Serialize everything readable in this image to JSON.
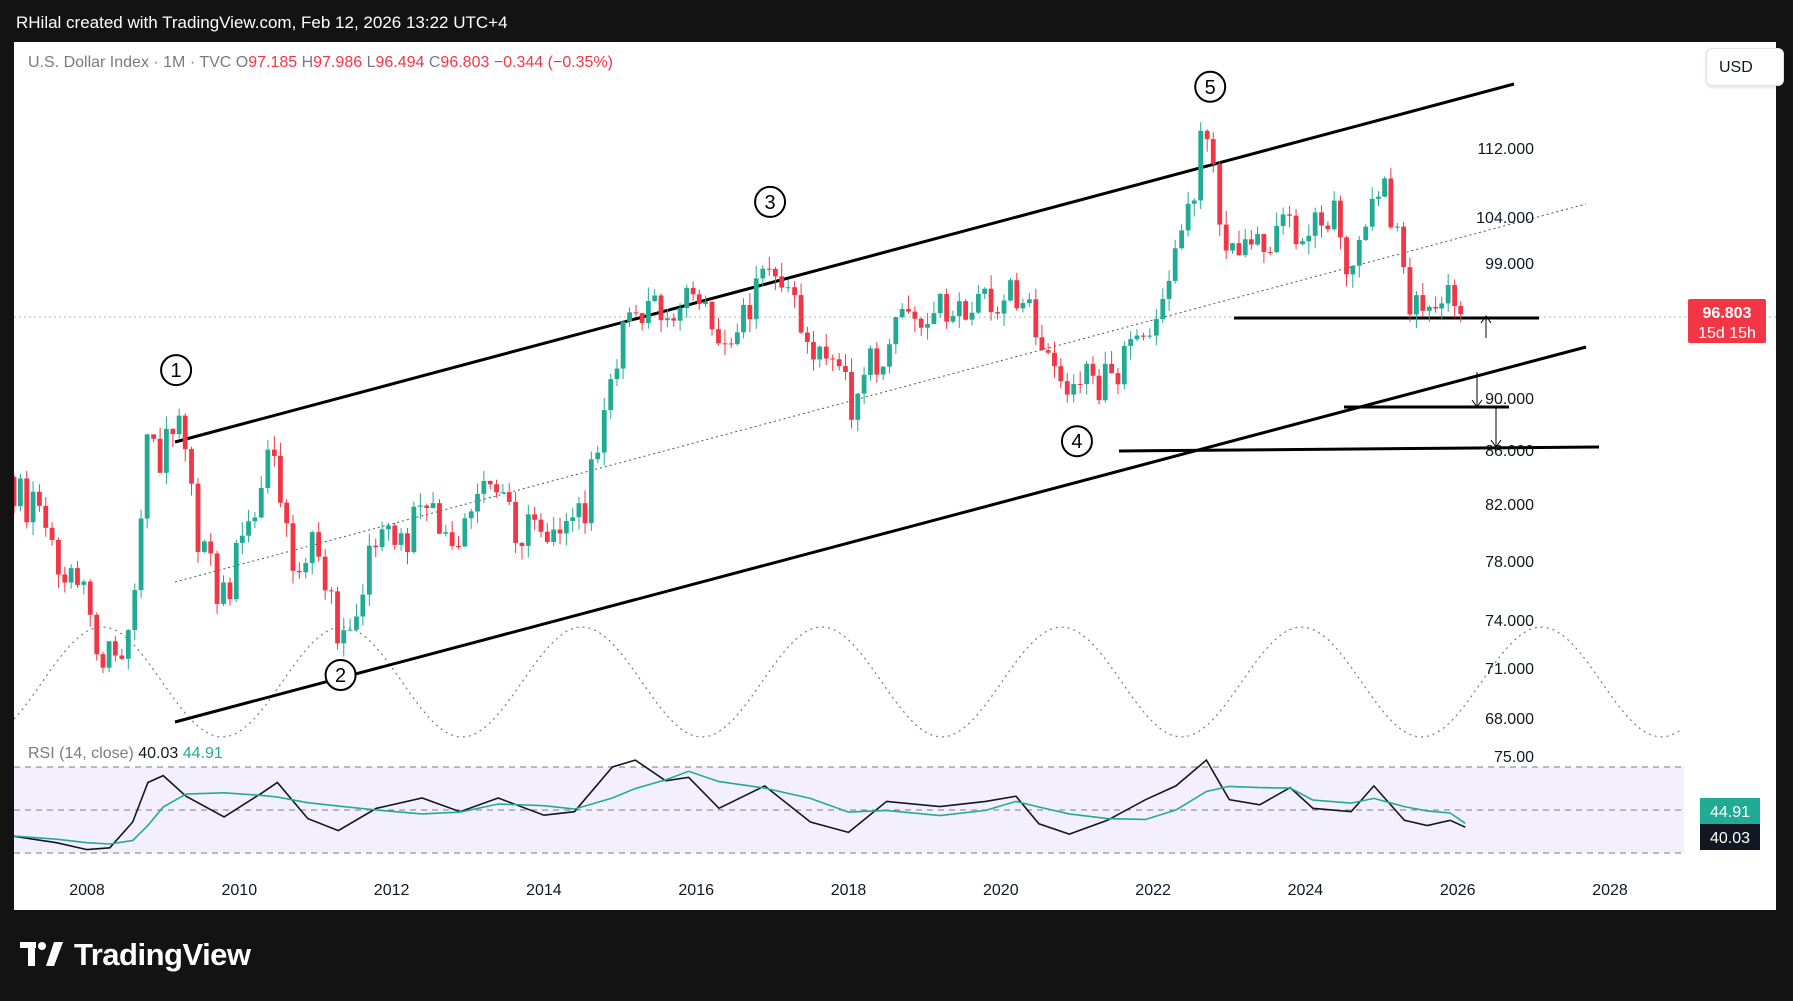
{
  "header": {
    "text": "RHilal created with TradingView.com, Feb 12, 2026 13:22 UTC+4"
  },
  "legend": {
    "symbol": "U.S. Dollar Index · 1M · TVC",
    "open_label": "O",
    "open": "97.185",
    "high_label": "H",
    "high": "97.986",
    "low_label": "L",
    "low": "96.494",
    "close_label": "C",
    "close": "96.803",
    "change": "−0.344 (−0.35%)"
  },
  "currency_button": "USD",
  "price_tag": {
    "price": "96.803",
    "countdown": "15d 15h"
  },
  "rsi": {
    "label": "RSI (14, close)",
    "value": "40.03",
    "ma_value": "44.91",
    "upper_level": "75.00"
  },
  "brand": {
    "name": "TradingView",
    "icon": "tradingview-logo-icon"
  },
  "colors": {
    "up": "#22ab94",
    "down": "#f23645",
    "rsi_line": "#131722",
    "rsi_ma": "#22ab94",
    "rsi_band": "#f3effc",
    "background": "#131313"
  },
  "chart_data": {
    "type": "candlestick",
    "title": "U.S. Dollar Index · 1M · TVC",
    "x_tick_labels": [
      "2008",
      "2010",
      "2012",
      "2014",
      "2016",
      "2018",
      "2020",
      "2022",
      "2024",
      "2026",
      "2028"
    ],
    "y_tick_labels": [
      "112.000",
      "104.000",
      "99.000",
      "90.000",
      "86.000",
      "82.000",
      "78.000",
      "74.000",
      "71.000",
      "68.000"
    ],
    "y_scale": "log",
    "price_range": [
      66,
      122
    ],
    "time_range": [
      2007,
      2029
    ],
    "current_price": 96.803,
    "wave_labels": [
      {
        "label": "1",
        "t": 2009.17,
        "price": 89.6
      },
      {
        "label": "2",
        "t": 2011.33,
        "price": 72.7
      },
      {
        "label": "3",
        "t": 2016.97,
        "price": 103.8
      },
      {
        "label": "4",
        "t": 2021.0,
        "price": 89.2
      },
      {
        "label": "5",
        "t": 2022.75,
        "price": 114.8
      }
    ],
    "monthly_closes": [
      {
        "t": 2007.0,
        "c": 84.0
      },
      {
        "t": 2007.25,
        "c": 82.0
      },
      {
        "t": 2007.5,
        "c": 80.5
      },
      {
        "t": 2007.75,
        "c": 77.5
      },
      {
        "t": 2008.0,
        "c": 75.5
      },
      {
        "t": 2008.17,
        "c": 71.8
      },
      {
        "t": 2008.33,
        "c": 72.5
      },
      {
        "t": 2008.5,
        "c": 72.8
      },
      {
        "t": 2008.67,
        "c": 76.0
      },
      {
        "t": 2008.83,
        "c": 86.0
      },
      {
        "t": 2008.92,
        "c": 85.6
      },
      {
        "t": 2009.0,
        "c": 84.5
      },
      {
        "t": 2009.17,
        "c": 88.5
      },
      {
        "t": 2009.33,
        "c": 86.0
      },
      {
        "t": 2009.5,
        "c": 80.0
      },
      {
        "t": 2009.75,
        "c": 76.5
      },
      {
        "t": 2009.92,
        "c": 76.0
      },
      {
        "t": 2010.08,
        "c": 80.0
      },
      {
        "t": 2010.33,
        "c": 82.5
      },
      {
        "t": 2010.42,
        "c": 86.5
      },
      {
        "t": 2010.58,
        "c": 82.0
      },
      {
        "t": 2010.83,
        "c": 77.0
      },
      {
        "t": 2011.0,
        "c": 80.0
      },
      {
        "t": 2011.17,
        "c": 76.5
      },
      {
        "t": 2011.33,
        "c": 73.5
      },
      {
        "t": 2011.58,
        "c": 74.0
      },
      {
        "t": 2011.75,
        "c": 78.5
      },
      {
        "t": 2012.0,
        "c": 79.5
      },
      {
        "t": 2012.25,
        "c": 79.0
      },
      {
        "t": 2012.42,
        "c": 83.0
      },
      {
        "t": 2012.67,
        "c": 80.0
      },
      {
        "t": 2012.92,
        "c": 79.8
      },
      {
        "t": 2013.17,
        "c": 82.5
      },
      {
        "t": 2013.42,
        "c": 82.8
      },
      {
        "t": 2013.67,
        "c": 80.5
      },
      {
        "t": 2013.92,
        "c": 80.2
      },
      {
        "t": 2014.17,
        "c": 80.0
      },
      {
        "t": 2014.42,
        "c": 80.5
      },
      {
        "t": 2014.58,
        "c": 82.0
      },
      {
        "t": 2014.75,
        "c": 86.0
      },
      {
        "t": 2014.92,
        "c": 90.0
      },
      {
        "t": 2015.08,
        "c": 95.0
      },
      {
        "t": 2015.17,
        "c": 98.5
      },
      {
        "t": 2015.33,
        "c": 96.5
      },
      {
        "t": 2015.58,
        "c": 97.0
      },
      {
        "t": 2015.83,
        "c": 97.0
      },
      {
        "t": 2015.92,
        "c": 99.5
      },
      {
        "t": 2016.08,
        "c": 98.5
      },
      {
        "t": 2016.25,
        "c": 94.5
      },
      {
        "t": 2016.42,
        "c": 95.5
      },
      {
        "t": 2016.58,
        "c": 96.0
      },
      {
        "t": 2016.83,
        "c": 99.0
      },
      {
        "t": 2016.92,
        "c": 102.0
      },
      {
        "t": 2017.08,
        "c": 100.5
      },
      {
        "t": 2017.25,
        "c": 99.0
      },
      {
        "t": 2017.42,
        "c": 96.0
      },
      {
        "t": 2017.58,
        "c": 93.0
      },
      {
        "t": 2017.75,
        "c": 93.5
      },
      {
        "t": 2017.92,
        "c": 92.0
      },
      {
        "t": 2018.08,
        "c": 89.5
      },
      {
        "t": 2018.33,
        "c": 92.5
      },
      {
        "t": 2018.58,
        "c": 94.5
      },
      {
        "t": 2018.83,
        "c": 96.5
      },
      {
        "t": 2019.08,
        "c": 96.0
      },
      {
        "t": 2019.33,
        "c": 97.5
      },
      {
        "t": 2019.58,
        "c": 98.0
      },
      {
        "t": 2019.83,
        "c": 97.5
      },
      {
        "t": 2020.0,
        "c": 96.5
      },
      {
        "t": 2020.17,
        "c": 99.0
      },
      {
        "t": 2020.33,
        "c": 98.5
      },
      {
        "t": 2020.42,
        "c": 97.5
      },
      {
        "t": 2020.58,
        "c": 93.5
      },
      {
        "t": 2020.83,
        "c": 92.5
      },
      {
        "t": 2021.0,
        "c": 90.0
      },
      {
        "t": 2021.17,
        "c": 92.5
      },
      {
        "t": 2021.33,
        "c": 90.5
      },
      {
        "t": 2021.58,
        "c": 92.5
      },
      {
        "t": 2021.83,
        "c": 95.5
      },
      {
        "t": 2022.0,
        "c": 96.5
      },
      {
        "t": 2022.17,
        "c": 98.5
      },
      {
        "t": 2022.33,
        "c": 102.5
      },
      {
        "t": 2022.42,
        "c": 104.5
      },
      {
        "t": 2022.58,
        "c": 108.5
      },
      {
        "t": 2022.67,
        "c": 112.0
      },
      {
        "t": 2022.83,
        "c": 111.5
      },
      {
        "t": 2022.92,
        "c": 106.0
      },
      {
        "t": 2023.0,
        "c": 103.5
      },
      {
        "t": 2023.17,
        "c": 102.5
      },
      {
        "t": 2023.33,
        "c": 103.5
      },
      {
        "t": 2023.58,
        "c": 101.5
      },
      {
        "t": 2023.75,
        "c": 106.0
      },
      {
        "t": 2023.92,
        "c": 101.5
      },
      {
        "t": 2024.17,
        "c": 104.5
      },
      {
        "t": 2024.42,
        "c": 105.5
      },
      {
        "t": 2024.58,
        "c": 101.5
      },
      {
        "t": 2024.75,
        "c": 104.0
      },
      {
        "t": 2024.92,
        "c": 108.0
      },
      {
        "t": 2025.08,
        "c": 107.5
      },
      {
        "t": 2025.25,
        "c": 104.0
      },
      {
        "t": 2025.33,
        "c": 99.5
      },
      {
        "t": 2025.5,
        "c": 97.0
      },
      {
        "t": 2025.67,
        "c": 98.0
      },
      {
        "t": 2025.83,
        "c": 99.5
      },
      {
        "t": 2025.92,
        "c": 98.5
      },
      {
        "t": 2026.0,
        "c": 97.2
      },
      {
        "t": 2026.08,
        "c": 96.8
      }
    ],
    "rsi_series": [
      {
        "t": 2007.0,
        "v": 35
      },
      {
        "t": 2007.6,
        "v": 31
      },
      {
        "t": 2008.0,
        "v": 27
      },
      {
        "t": 2008.3,
        "v": 28
      },
      {
        "t": 2008.6,
        "v": 43
      },
      {
        "t": 2008.8,
        "v": 66
      },
      {
        "t": 2009.0,
        "v": 70
      },
      {
        "t": 2009.3,
        "v": 58
      },
      {
        "t": 2009.8,
        "v": 46
      },
      {
        "t": 2010.3,
        "v": 60
      },
      {
        "t": 2010.5,
        "v": 66
      },
      {
        "t": 2010.9,
        "v": 45
      },
      {
        "t": 2011.3,
        "v": 38
      },
      {
        "t": 2011.8,
        "v": 51
      },
      {
        "t": 2012.4,
        "v": 57
      },
      {
        "t": 2012.9,
        "v": 49
      },
      {
        "t": 2013.4,
        "v": 57
      },
      {
        "t": 2014.0,
        "v": 47
      },
      {
        "t": 2014.4,
        "v": 49
      },
      {
        "t": 2014.9,
        "v": 75
      },
      {
        "t": 2015.2,
        "v": 79
      },
      {
        "t": 2015.6,
        "v": 67
      },
      {
        "t": 2015.9,
        "v": 69
      },
      {
        "t": 2016.3,
        "v": 51
      },
      {
        "t": 2016.9,
        "v": 64
      },
      {
        "t": 2017.5,
        "v": 43
      },
      {
        "t": 2018.0,
        "v": 37
      },
      {
        "t": 2018.5,
        "v": 55
      },
      {
        "t": 2019.2,
        "v": 52
      },
      {
        "t": 2019.8,
        "v": 55
      },
      {
        "t": 2020.2,
        "v": 58
      },
      {
        "t": 2020.5,
        "v": 42
      },
      {
        "t": 2020.9,
        "v": 36
      },
      {
        "t": 2021.4,
        "v": 44
      },
      {
        "t": 2021.9,
        "v": 56
      },
      {
        "t": 2022.3,
        "v": 64
      },
      {
        "t": 2022.7,
        "v": 79
      },
      {
        "t": 2023.0,
        "v": 56
      },
      {
        "t": 2023.4,
        "v": 53
      },
      {
        "t": 2023.8,
        "v": 63
      },
      {
        "t": 2024.1,
        "v": 51
      },
      {
        "t": 2024.6,
        "v": 49
      },
      {
        "t": 2024.9,
        "v": 64
      },
      {
        "t": 2025.3,
        "v": 44
      },
      {
        "t": 2025.6,
        "v": 41
      },
      {
        "t": 2025.9,
        "v": 44
      },
      {
        "t": 2026.1,
        "v": 40
      }
    ]
  }
}
